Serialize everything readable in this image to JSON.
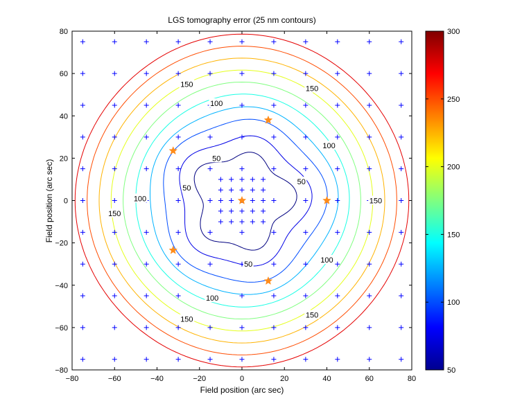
{
  "chart_data": {
    "type": "contour",
    "title": "LGS tomography error (25 nm contours)",
    "xlabel": "Field position (arc sec)",
    "ylabel": "Field position (arc sec)",
    "xlim": [
      -80,
      80
    ],
    "ylim": [
      -80,
      80
    ],
    "xticks": [
      -80,
      -60,
      -40,
      -20,
      0,
      20,
      40,
      60,
      80
    ],
    "yticks": [
      -80,
      -60,
      -40,
      -20,
      0,
      20,
      40,
      60,
      80
    ],
    "colorbar": {
      "min": 50,
      "max": 300,
      "ticks": [
        50,
        100,
        150,
        200,
        250,
        300
      ],
      "colormap": "jet"
    },
    "contour_levels": [
      50,
      75,
      100,
      125,
      150,
      175,
      200,
      225,
      250,
      275
    ],
    "contour_labels": [
      {
        "text": "50",
        "x": -12,
        "y": 20
      },
      {
        "text": "50",
        "x": -26,
        "y": 6
      },
      {
        "text": "50",
        "x": 28,
        "y": 9
      },
      {
        "text": "50",
        "x": 3,
        "y": -30
      },
      {
        "text": "100",
        "x": -12,
        "y": 46
      },
      {
        "text": "100",
        "x": -48,
        "y": 1
      },
      {
        "text": "100",
        "x": 41,
        "y": 26
      },
      {
        "text": "100",
        "x": 40,
        "y": -28
      },
      {
        "text": "100",
        "x": -14,
        "y": -46
      },
      {
        "text": "150",
        "x": -26,
        "y": 55
      },
      {
        "text": "150",
        "x": 33,
        "y": 53
      },
      {
        "text": "150",
        "x": -60,
        "y": -6
      },
      {
        "text": "150",
        "x": 63,
        "y": 0
      },
      {
        "text": "150",
        "x": -26,
        "y": -56
      },
      {
        "text": "150",
        "x": 33,
        "y": -54
      }
    ],
    "evaluation_points_outer_grid": [
      -75,
      -60,
      -45,
      -30,
      -15,
      0,
      15,
      30,
      45,
      60,
      75
    ],
    "evaluation_points_inner_grid": [
      -10,
      -5,
      0,
      5,
      10
    ],
    "guide_stars": [
      {
        "x": 0,
        "y": 0
      },
      {
        "x": 12.4,
        "y": 38
      },
      {
        "x": -32.4,
        "y": 23.5
      },
      {
        "x": -32.4,
        "y": -23.5
      },
      {
        "x": 12.4,
        "y": -38
      },
      {
        "x": 40,
        "y": 0
      }
    ],
    "colors": {
      "marker": "#0000ff",
      "star": "#ff8c1a"
    }
  }
}
